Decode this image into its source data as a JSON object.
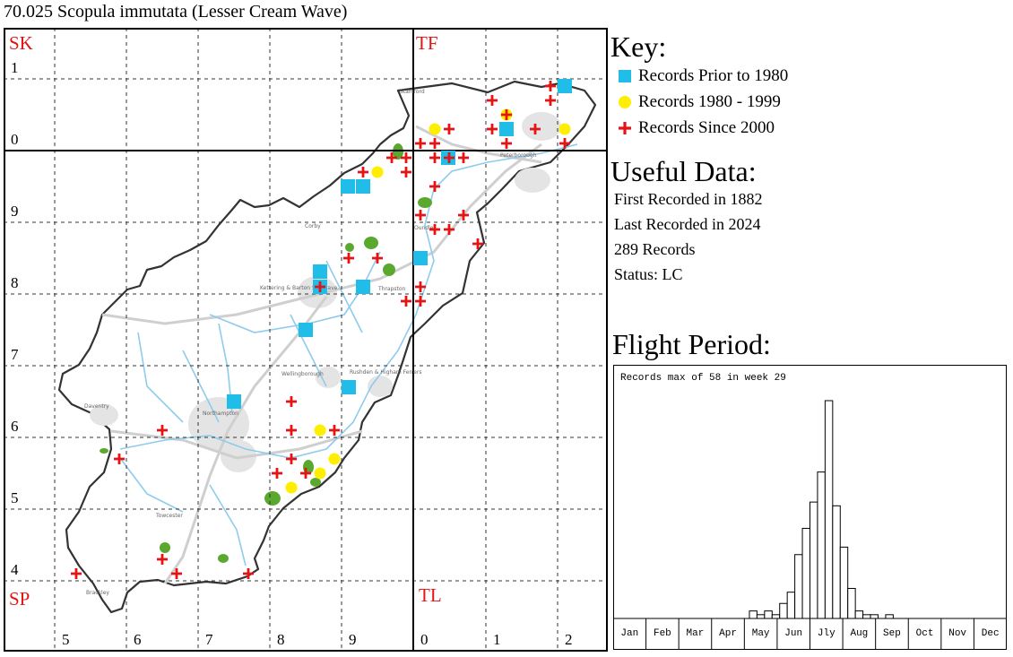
{
  "title": "70.025 Scopula immutata (Lesser Cream Wave)",
  "map": {
    "square_labels": [
      {
        "text": "SK",
        "quadrant": "top-left"
      },
      {
        "text": "TF",
        "quadrant": "top-right"
      },
      {
        "text": "SP",
        "quadrant": "bottom-left"
      },
      {
        "text": "TL",
        "quadrant": "bottom-right"
      }
    ],
    "northing_labels": [
      "1",
      "0",
      "9",
      "8",
      "7",
      "6",
      "5",
      "4"
    ],
    "easting_labels": [
      "5",
      "6",
      "7",
      "8",
      "9",
      "0",
      "1",
      "2"
    ],
    "place_names": [
      "Stamford",
      "Peterborough",
      "Corby",
      "Oundle",
      "Kettering & Barton Seagrave",
      "Thrapston",
      "Wellingborough",
      "Rushden & Higham Ferrers",
      "Daventry",
      "Northampton",
      "Towcester",
      "Brackley"
    ],
    "colors": {
      "prior_1980": "#1fbde8",
      "range_1980_1999": "#ffee00",
      "since_2000": "#e41414",
      "square_label": "#e41414",
      "woodland": "#5aa82e",
      "river": "#7cc4ea",
      "road": "#c8c8c8",
      "urban": "#e0e0e0"
    }
  },
  "key": {
    "title": "Key:",
    "items": [
      {
        "label": "Records Prior to 1980",
        "symbol": "square-icon",
        "color": "#1fbde8"
      },
      {
        "label": "Records 1980 - 1999",
        "symbol": "circle-icon",
        "color": "#ffee00"
      },
      {
        "label": "Records Since 2000",
        "symbol": "cross-icon",
        "color": "#e41414"
      }
    ]
  },
  "useful_data": {
    "title": "Useful Data:",
    "first_recorded": "First Recorded in 1882",
    "last_recorded": "Last Recorded in 2024",
    "records": "289 Records",
    "status": "Status: LC"
  },
  "flight_period": {
    "title": "Flight Period:",
    "caption": "Records max of 58 in week 29"
  },
  "chart_data": {
    "type": "bar",
    "title": "Records max of 58 in week 29",
    "month_labels": [
      "Jan",
      "Feb",
      "Mar",
      "Apr",
      "May",
      "Jun",
      "Jly",
      "Aug",
      "Sep",
      "Oct",
      "Nov",
      "Dec"
    ],
    "weeks": [
      19,
      20,
      21,
      22,
      23,
      24,
      25,
      26,
      27,
      28,
      29,
      30,
      31,
      32,
      33,
      34,
      35,
      36,
      37,
      38,
      39
    ],
    "values": [
      2,
      1,
      2,
      1,
      4,
      7,
      17,
      24,
      31,
      39,
      58,
      30,
      19,
      8,
      2,
      1,
      1,
      0,
      1,
      0,
      0
    ],
    "ylim": [
      0,
      58
    ]
  }
}
